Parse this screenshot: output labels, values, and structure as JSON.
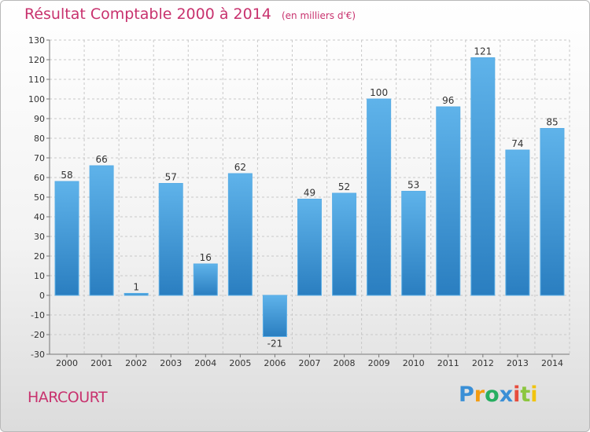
{
  "title": "Résultat Comptable 2000 à 2014",
  "subtitle": "(en milliers d'€)",
  "commune": "HARCOURT",
  "brand": {
    "name": "Proxiti",
    "letters": [
      {
        "ch": "P",
        "color": "#3a8fd6"
      },
      {
        "ch": "r",
        "color": "#f39c12"
      },
      {
        "ch": "o",
        "color": "#27ae60"
      },
      {
        "ch": "x",
        "color": "#3a8fd6"
      },
      {
        "ch": "i",
        "color": "#e74c3c"
      },
      {
        "ch": "t",
        "color": "#8cc63f"
      },
      {
        "ch": "i",
        "color": "#f1c40f"
      }
    ]
  },
  "colors": {
    "accent": "#c8326e",
    "bar_top": "#5fb3ea",
    "bar_bottom": "#2a7ec0",
    "grid": "#c8c8c8",
    "axis_text": "#333333"
  },
  "chart_data": {
    "type": "bar",
    "title": "Résultat Comptable 2000 à 2014",
    "xlabel": "",
    "ylabel": "",
    "categories": [
      "2000",
      "2001",
      "2002",
      "2003",
      "2004",
      "2005",
      "2006",
      "2007",
      "2008",
      "2009",
      "2010",
      "2011",
      "2012",
      "2013",
      "2014"
    ],
    "values": [
      58,
      66,
      1,
      57,
      16,
      62,
      -21,
      49,
      52,
      100,
      53,
      96,
      121,
      74,
      85
    ],
    "ylim": [
      -30,
      130
    ],
    "yticks": [
      -30,
      -20,
      -10,
      0,
      10,
      20,
      30,
      40,
      50,
      60,
      70,
      80,
      90,
      100,
      110,
      120,
      130
    ],
    "grid": true
  }
}
